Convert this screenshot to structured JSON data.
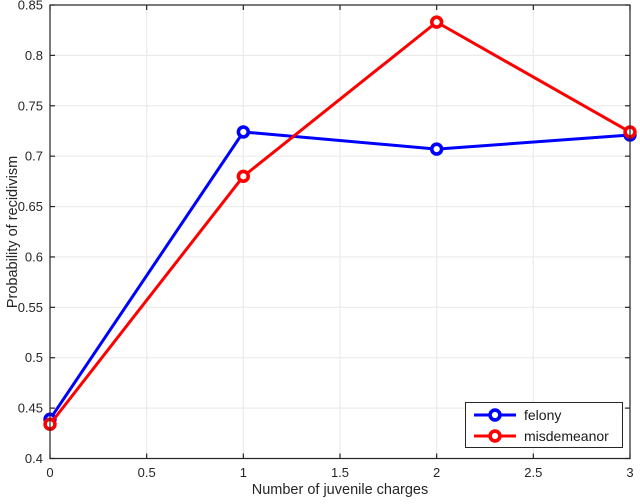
{
  "chart_data": {
    "type": "line",
    "x": [
      0,
      1,
      2,
      3
    ],
    "series": [
      {
        "name": "felony",
        "color": "#0000ff",
        "marker": "circle",
        "marker_fill": "#ffffff",
        "values": [
          0.439,
          0.724,
          0.707,
          0.721
        ]
      },
      {
        "name": "misdemeanor",
        "color": "#ff0000",
        "marker": "circle",
        "marker_fill": "#ffffff",
        "values": [
          0.434,
          0.68,
          0.833,
          0.724
        ]
      }
    ],
    "xlabel": "Number of juvenile charges",
    "ylabel": "Probability of recidivism",
    "xlim": [
      0,
      3
    ],
    "ylim": [
      0.4,
      0.85
    ],
    "xticks": [
      0,
      0.5,
      1,
      1.5,
      2,
      2.5,
      3
    ],
    "xtick_labels": [
      "0",
      "0.5",
      "1",
      "1.5",
      "2",
      "2.5",
      "3"
    ],
    "yticks": [
      0.4,
      0.45,
      0.5,
      0.55,
      0.6,
      0.65,
      0.7,
      0.75,
      0.8,
      0.85
    ],
    "ytick_labels": [
      "0.4",
      "0.45",
      "0.5",
      "0.55",
      "0.6",
      "0.65",
      "0.7",
      "0.75",
      "0.8",
      "0.85"
    ],
    "grid": true,
    "box": true,
    "legend_position": "bottom-right"
  },
  "colors": {
    "background": "#ffffff",
    "axis": "#262626",
    "grid": "#ebebeb",
    "tick_label": "#262626"
  }
}
